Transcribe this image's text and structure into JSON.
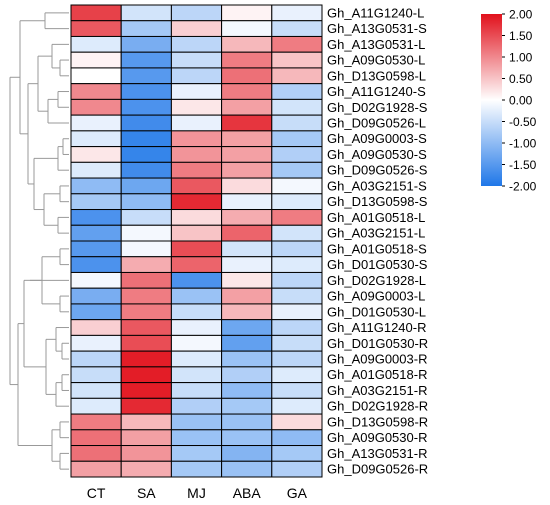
{
  "chart_data": {
    "type": "heatmap",
    "columns": [
      "CT",
      "SA",
      "MJ",
      "ABA",
      "GA"
    ],
    "rows": [
      "Gh_A11G1240-L",
      "Gh_A13G0531-S",
      "Gh_A13G0531-L",
      "Gh_A09G0530-L",
      "Gh_D13G0598-L",
      "Gh_A11G1240-S",
      "Gh_D02G1928-S",
      "Gh_D09G0526-L",
      "Gh_A09G0003-S",
      "Gh_A09G0530-S",
      "Gh_D09G0526-S",
      "Gh_A03G2151-S",
      "Gh_D13G0598-S",
      "Gh_A01G0518-L",
      "Gh_A03G2151-L",
      "Gh_A01G0518-S",
      "Gh_D01G0530-S",
      "Gh_D02G1928-L",
      "Gh_A09G0003-L",
      "Gh_D01G0530-L",
      "Gh_A11G1240-R",
      "Gh_D01G0530-R",
      "Gh_A09G0003-R",
      "Gh_A01G0518-R",
      "Gh_A03G2151-R",
      "Gh_D02G1928-R",
      "Gh_D13G0598-R",
      "Gh_A09G0530-R",
      "Gh_A13G0531-R",
      "Gh_D09G0526-R"
    ],
    "values": [
      [
        1.6,
        -0.4,
        -0.6,
        0.1,
        -0.2
      ],
      [
        1.4,
        -0.8,
        0.4,
        -0.1,
        -0.5
      ],
      [
        -0.3,
        -1.2,
        -0.6,
        0.6,
        1.1
      ],
      [
        0.1,
        -1.5,
        -0.5,
        1.1,
        0.5
      ],
      [
        0.0,
        -1.5,
        -0.6,
        1.2,
        0.6
      ],
      [
        1.0,
        -1.6,
        -0.2,
        1.1,
        -0.7
      ],
      [
        1.0,
        -1.6,
        0.2,
        0.8,
        -0.4
      ],
      [
        -0.2,
        -1.7,
        -0.2,
        1.7,
        -0.5
      ],
      [
        -0.3,
        -1.8,
        0.9,
        0.8,
        -0.8
      ],
      [
        0.2,
        -1.8,
        0.9,
        0.8,
        -0.7
      ],
      [
        -0.3,
        -1.7,
        1.1,
        0.8,
        -0.8
      ],
      [
        -1.0,
        -1.3,
        1.4,
        0.3,
        -0.1
      ],
      [
        -0.8,
        -1.0,
        1.8,
        -0.2,
        -0.3
      ],
      [
        -1.6,
        -0.5,
        0.3,
        0.7,
        1.1
      ],
      [
        -1.4,
        -0.1,
        0.5,
        1.3,
        -0.4
      ],
      [
        -1.5,
        -0.1,
        1.5,
        -0.4,
        -0.6
      ],
      [
        -1.6,
        0.7,
        1.3,
        -0.2,
        -0.3
      ],
      [
        -0.1,
        1.2,
        -1.6,
        0.2,
        -0.6
      ],
      [
        -1.2,
        1.1,
        -0.9,
        0.8,
        -0.5
      ],
      [
        -1.3,
        1.1,
        -0.5,
        0.6,
        -0.2
      ],
      [
        0.4,
        1.4,
        -0.2,
        -1.3,
        -0.6
      ],
      [
        -0.2,
        1.5,
        -0.1,
        -1.4,
        -0.5
      ],
      [
        -0.6,
        1.9,
        -0.3,
        -0.9,
        -0.6
      ],
      [
        -0.5,
        1.9,
        -0.4,
        -0.7,
        -0.3
      ],
      [
        -0.4,
        1.9,
        -0.5,
        -1.0,
        -0.5
      ],
      [
        -0.3,
        1.8,
        -0.7,
        -0.8,
        -0.3
      ],
      [
        1.1,
        0.6,
        -0.9,
        -0.9,
        0.3
      ],
      [
        1.2,
        0.8,
        -0.9,
        -0.9,
        -1.0
      ],
      [
        1.2,
        0.9,
        -0.8,
        -1.1,
        -0.8
      ],
      [
        0.8,
        0.7,
        -0.8,
        -0.9,
        -0.7
      ]
    ],
    "scale": {
      "min": -2.0,
      "max": 2.0,
      "low_color": "#1f77e8",
      "mid_color": "#ffffff",
      "high_color": "#e1111c",
      "ticks": [
        "2.00",
        "1.50",
        "1.00",
        "0.50",
        "0.00",
        "-0.50",
        "-1.00",
        "-1.50",
        "-2.00"
      ]
    },
    "dendrogram": "left",
    "legend_position": "top-right"
  }
}
